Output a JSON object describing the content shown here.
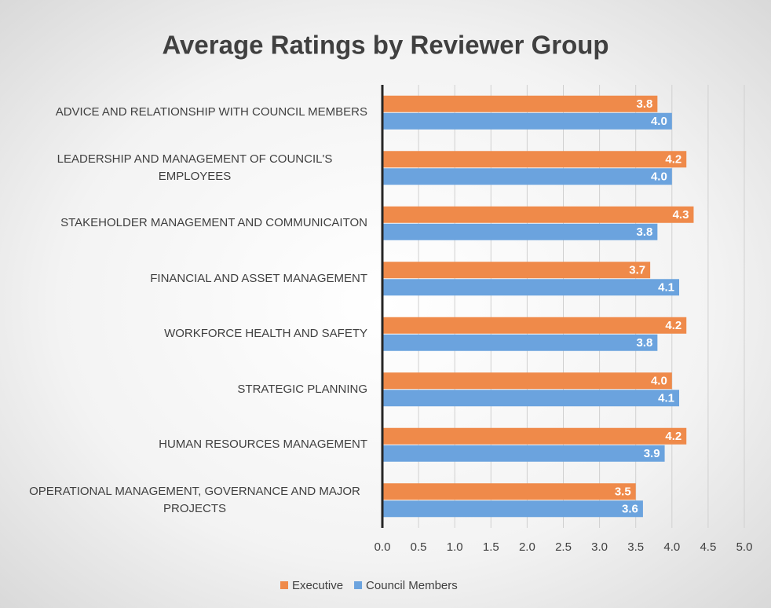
{
  "chart_data": {
    "type": "bar",
    "orientation": "horizontal",
    "title": "Average Ratings by Reviewer Group",
    "categories": [
      "ADVICE AND RELATIONSHIP WITH COUNCIL MEMBERS",
      "LEADERSHIP AND MANAGEMENT OF COUNCIL'S EMPLOYEES",
      "STAKEHOLDER MANAGEMENT AND COMMUNICAITON",
      "FINANCIAL AND ASSET MANAGEMENT",
      "WORKFORCE HEALTH AND SAFETY",
      "STRATEGIC PLANNING",
      "HUMAN RESOURCES MANAGEMENT",
      "OPERATIONAL MANAGEMENT, GOVERNANCE AND MAJOR PROJECTS"
    ],
    "series": [
      {
        "name": "Executive",
        "color": "#ef8a4a",
        "values": [
          3.8,
          4.2,
          4.3,
          3.7,
          4.2,
          4.0,
          4.2,
          3.5
        ],
        "value_labels": [
          "3.8",
          "4.2",
          "4.3",
          "3.7",
          "4.2",
          "4.0",
          "4.2",
          "3.5"
        ]
      },
      {
        "name": "Council Members",
        "color": "#6ba3de",
        "values": [
          4.0,
          4.0,
          3.8,
          4.1,
          3.8,
          4.1,
          3.9,
          3.6
        ],
        "value_labels": [
          "4.0",
          "4.0",
          "3.8",
          "4.1",
          "3.8",
          "4.1",
          "3.9",
          "3.6"
        ]
      }
    ],
    "xlim": [
      0,
      5
    ],
    "xticks": [
      {
        "value": 0,
        "label": "0.0"
      },
      {
        "value": 0.5,
        "label": "0.5"
      },
      {
        "value": 1,
        "label": "1.0"
      },
      {
        "value": 1.5,
        "label": "1.5"
      },
      {
        "value": 2,
        "label": "2.0"
      },
      {
        "value": 2.5,
        "label": "2.5"
      },
      {
        "value": 3,
        "label": "3.0"
      },
      {
        "value": 3.5,
        "label": "3.5"
      },
      {
        "value": 4,
        "label": "4.0"
      },
      {
        "value": 4.5,
        "label": "4.5"
      },
      {
        "value": 5,
        "label": "5.0"
      }
    ],
    "grid": true,
    "legend": "bottom"
  }
}
